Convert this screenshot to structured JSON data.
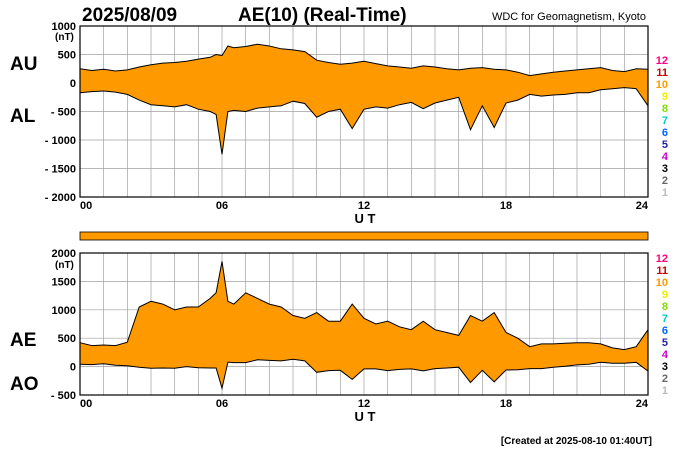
{
  "header": {
    "date": "2025/08/09",
    "title": "AE(10) (Real-Time)",
    "credit": "WDC for Geomagnetism, Kyoto"
  },
  "footer": "[Created at 2025-08-10 01:40UT]",
  "colors": {
    "fill": "#ff9900",
    "line": "#000000",
    "grid": "#a0a0a0",
    "status_bar": "#ff9900"
  },
  "station_legend": {
    "labels": [
      "12",
      "11",
      "10",
      "9",
      "8",
      "7",
      "6",
      "5",
      "4",
      "3",
      "2",
      "1"
    ],
    "colors": [
      "#ff0080",
      "#cc0000",
      "#ff9900",
      "#eeee00",
      "#80dd00",
      "#00cccc",
      "#0066ff",
      "#2222aa",
      "#cc00cc",
      "#000000",
      "#666666",
      "#bbbbbb"
    ]
  },
  "status_bar": {
    "stations_reporting": 12
  },
  "chart_data": [
    {
      "type": "area",
      "xlabel": "U T",
      "unit_label": "(nT)",
      "side_labels": [
        "AU",
        "AL"
      ],
      "xlim": [
        0,
        24
      ],
      "ylim": [
        -2000,
        1000
      ],
      "x_ticks": [
        "00",
        "06",
        "12",
        "18",
        "24"
      ],
      "y_ticks": [
        {
          "v": 1000,
          "label": "1000"
        },
        {
          "v": 500,
          "label": "500"
        },
        {
          "v": 0,
          "label": "0"
        },
        {
          "v": -500,
          "label": "- 500"
        },
        {
          "v": -1000,
          "label": "- 1000"
        },
        {
          "v": -1500,
          "label": "- 1500"
        },
        {
          "v": -2000,
          "label": "- 2000"
        }
      ],
      "grid": true,
      "x": [
        0,
        0.5,
        1,
        1.5,
        2,
        2.5,
        3,
        3.5,
        4,
        4.5,
        5,
        5.5,
        5.75,
        6,
        6.25,
        6.5,
        7,
        7.5,
        8,
        8.5,
        9,
        9.5,
        10,
        10.5,
        11,
        11.5,
        12,
        12.5,
        13,
        13.5,
        14,
        14.5,
        15,
        15.5,
        16,
        16.5,
        17,
        17.5,
        18,
        18.5,
        19,
        19.5,
        20,
        20.5,
        21,
        21.5,
        22,
        22.5,
        23,
        23.5,
        24
      ],
      "series": [
        {
          "name": "AU",
          "values": [
            250,
            220,
            240,
            210,
            230,
            280,
            320,
            350,
            360,
            380,
            420,
            450,
            500,
            480,
            650,
            620,
            640,
            680,
            650,
            600,
            580,
            550,
            400,
            360,
            330,
            350,
            380,
            340,
            300,
            280,
            260,
            300,
            280,
            250,
            230,
            260,
            270,
            240,
            230,
            190,
            130,
            160,
            190,
            210,
            230,
            250,
            270,
            220,
            200,
            250,
            240
          ]
        },
        {
          "name": "AL",
          "values": [
            -170,
            -150,
            -140,
            -160,
            -200,
            -300,
            -380,
            -400,
            -420,
            -380,
            -460,
            -500,
            -550,
            -1250,
            -500,
            -480,
            -500,
            -440,
            -420,
            -400,
            -320,
            -360,
            -600,
            -500,
            -460,
            -800,
            -460,
            -420,
            -440,
            -380,
            -340,
            -450,
            -350,
            -300,
            -250,
            -820,
            -400,
            -780,
            -350,
            -300,
            -200,
            -230,
            -210,
            -200,
            -170,
            -170,
            -120,
            -100,
            -80,
            -100,
            -400
          ]
        }
      ]
    },
    {
      "type": "area",
      "xlabel": "U T",
      "unit_label": "(nT)",
      "side_labels": [
        "AE",
        "AO"
      ],
      "xlim": [
        0,
        24
      ],
      "ylim": [
        -500,
        2000
      ],
      "x_ticks": [
        "00",
        "06",
        "12",
        "18",
        "24"
      ],
      "y_ticks": [
        {
          "v": 2000,
          "label": "2000"
        },
        {
          "v": 1500,
          "label": "1500"
        },
        {
          "v": 1000,
          "label": "1000"
        },
        {
          "v": 500,
          "label": "500"
        },
        {
          "v": 0,
          "label": "0"
        },
        {
          "v": -500,
          "label": "- 500"
        }
      ],
      "grid": true,
      "x": [
        0,
        0.5,
        1,
        1.5,
        2,
        2.5,
        3,
        3.5,
        4,
        4.5,
        5,
        5.5,
        5.75,
        6,
        6.25,
        6.5,
        7,
        7.5,
        8,
        8.5,
        9,
        9.5,
        10,
        10.5,
        11,
        11.5,
        12,
        12.5,
        13,
        13.5,
        14,
        14.5,
        15,
        15.5,
        16,
        16.5,
        17,
        17.5,
        18,
        18.5,
        19,
        19.5,
        20,
        20.5,
        21,
        21.5,
        22,
        22.5,
        23,
        23.5,
        24
      ],
      "series": [
        {
          "name": "AE",
          "values": [
            420,
            370,
            380,
            370,
            430,
            1050,
            1150,
            1100,
            1000,
            1050,
            1050,
            1200,
            1300,
            1850,
            1150,
            1100,
            1300,
            1200,
            1100,
            1050,
            900,
            850,
            950,
            800,
            800,
            1100,
            850,
            750,
            800,
            700,
            650,
            800,
            650,
            600,
            550,
            900,
            800,
            950,
            600,
            500,
            350,
            400,
            400,
            410,
            420,
            420,
            400,
            330,
            300,
            350,
            650
          ]
        },
        {
          "name": "AO",
          "values": [
            40,
            35,
            50,
            25,
            15,
            -10,
            -30,
            -25,
            -30,
            0,
            -20,
            -25,
            -25,
            -380,
            80,
            70,
            70,
            120,
            110,
            100,
            130,
            100,
            -100,
            -70,
            -65,
            -225,
            -40,
            -40,
            -70,
            -50,
            -40,
            -75,
            -35,
            -25,
            -10,
            -280,
            -65,
            -270,
            -60,
            -55,
            -35,
            -35,
            -10,
            5,
            30,
            40,
            75,
            60,
            60,
            75,
            -80
          ]
        }
      ]
    }
  ]
}
